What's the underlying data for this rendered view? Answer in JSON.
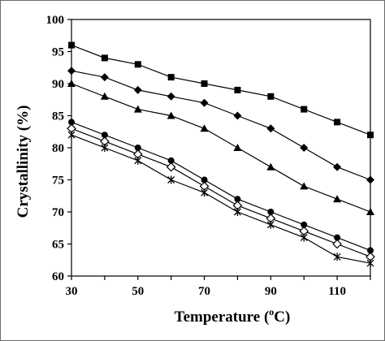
{
  "chart_data": {
    "type": "line",
    "xlabel": "Temperature",
    "xlabel_unit_prefix": " (",
    "xlabel_degree": "o",
    "xlabel_unit_suffix": "C)",
    "ylabel": "Crystallinity (%)",
    "xlim": [
      30,
      120
    ],
    "ylim": [
      60,
      100
    ],
    "x_ticks": [
      30,
      50,
      70,
      90,
      110
    ],
    "y_ticks": [
      60,
      65,
      70,
      75,
      80,
      85,
      90,
      95,
      100
    ],
    "grid": false,
    "legend": "none",
    "x": [
      30,
      40,
      50,
      60,
      70,
      80,
      90,
      100,
      110,
      120
    ],
    "series": [
      {
        "marker": "square",
        "values": [
          96,
          94,
          93,
          91,
          90,
          89,
          88,
          86,
          84,
          82
        ]
      },
      {
        "marker": "diamond",
        "values": [
          92,
          91,
          89,
          88,
          87,
          85,
          83,
          80,
          77,
          75
        ]
      },
      {
        "marker": "triangle",
        "values": [
          90,
          88,
          86,
          85,
          83,
          80,
          77,
          74,
          72,
          70
        ]
      },
      {
        "marker": "circle",
        "values": [
          84,
          82,
          80,
          78,
          75,
          72,
          70,
          68,
          66,
          64
        ]
      },
      {
        "marker": "diamond-open",
        "values": [
          83,
          81,
          79,
          77,
          74,
          71,
          69,
          67,
          65,
          63
        ]
      },
      {
        "marker": "star",
        "values": [
          82,
          80,
          78,
          75,
          73,
          70,
          68,
          66,
          63,
          62
        ]
      }
    ],
    "line_color": "#000000",
    "marker_color": "#000000"
  }
}
